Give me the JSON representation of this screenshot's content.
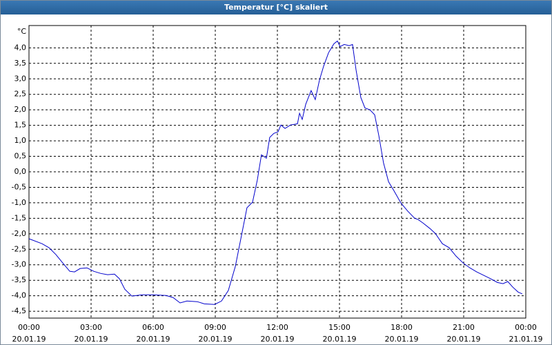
{
  "window_title": "Temperatur [°C] skaliert",
  "chart_data": {
    "type": "line",
    "y_unit": "°C",
    "xlim": [
      0,
      24
    ],
    "xticks": [
      {
        "value": 0,
        "label": "00:00\n20.01.19"
      },
      {
        "value": 3,
        "label": "03:00\n20.01.19"
      },
      {
        "value": 6,
        "label": "06:00\n20.01.19"
      },
      {
        "value": 9,
        "label": "09:00\n20.01.19"
      },
      {
        "value": 12,
        "label": "12:00\n20.01.19"
      },
      {
        "value": 15,
        "label": "15:00\n20.01.19"
      },
      {
        "value": 18,
        "label": "18:00\n20.01.19"
      },
      {
        "value": 21,
        "label": "21:00\n20.01.19"
      },
      {
        "value": 24,
        "label": "00:00\n21.01.19"
      }
    ],
    "ylim": [
      -4.72,
      4.72
    ],
    "yticks": [
      {
        "value": 4,
        "label": "4,0"
      },
      {
        "value": 3.5,
        "label": "3,5"
      },
      {
        "value": 3,
        "label": "3,0"
      },
      {
        "value": 2.5,
        "label": "2,5"
      },
      {
        "value": 2,
        "label": "2,0"
      },
      {
        "value": 1.5,
        "label": "1,5"
      },
      {
        "value": 1,
        "label": "1,0"
      },
      {
        "value": 0.5,
        "label": "0,5"
      },
      {
        "value": 0,
        "label": "0,0"
      },
      {
        "value": -0.5,
        "label": "-0,5"
      },
      {
        "value": -1,
        "label": "-1,0"
      },
      {
        "value": -1.5,
        "label": "-1,5"
      },
      {
        "value": -2,
        "label": "-2,0"
      },
      {
        "value": -2.5,
        "label": "-2,5"
      },
      {
        "value": -3,
        "label": "-3,0"
      },
      {
        "value": -3.5,
        "label": "-3,5"
      },
      {
        "value": -4,
        "label": "-4,0"
      },
      {
        "value": -4.5,
        "label": "-4,5"
      }
    ],
    "grid": true,
    "color": "#0000cc",
    "x": [
      0,
      0.63,
      0.97,
      1.3,
      1.63,
      1.97,
      2.2,
      2.47,
      2.8,
      3.13,
      3.47,
      3.8,
      4.13,
      4.37,
      4.63,
      4.97,
      5.2,
      5.47,
      5.97,
      6.63,
      6.97,
      7.3,
      7.63,
      8.13,
      8.47,
      8.97,
      9.3,
      9.63,
      9.97,
      10.3,
      10.53,
      10.8,
      11.03,
      11.23,
      11.47,
      11.63,
      11.83,
      12.03,
      12.17,
      12.37,
      12.63,
      12.97,
      13.07,
      13.2,
      13.37,
      13.63,
      13.83,
      14.03,
      14.23,
      14.47,
      14.73,
      14.9,
      15.03,
      15.23,
      15.47,
      15.63,
      15.8,
      16.03,
      16.23,
      16.47,
      16.7,
      16.9,
      17.13,
      17.37,
      17.63,
      17.97,
      18.3,
      18.63,
      18.8,
      19.03,
      19.37,
      19.63,
      19.97,
      20.3,
      20.63,
      20.97,
      21.3,
      21.63,
      21.97,
      22.3,
      22.63,
      22.9,
      23.13,
      23.37,
      23.63,
      23.83
    ],
    "values": [
      -2.16,
      -2.32,
      -2.45,
      -2.67,
      -2.94,
      -3.21,
      -3.23,
      -3.12,
      -3.1,
      -3.21,
      -3.28,
      -3.32,
      -3.3,
      -3.45,
      -3.79,
      -4.01,
      -3.99,
      -3.97,
      -3.97,
      -3.99,
      -4.06,
      -4.23,
      -4.17,
      -4.19,
      -4.26,
      -4.28,
      -4.17,
      -3.83,
      -3.05,
      -1.94,
      -1.16,
      -0.98,
      -0.27,
      0.55,
      0.44,
      1.11,
      1.24,
      1.29,
      1.51,
      1.4,
      1.51,
      1.55,
      1.89,
      1.69,
      2.18,
      2.62,
      2.33,
      2.95,
      3.4,
      3.84,
      4.13,
      4.22,
      4.04,
      4.11,
      4.07,
      4.11,
      3.29,
      2.4,
      2.06,
      2.0,
      1.84,
      1.17,
      0.28,
      -0.32,
      -0.61,
      -1.01,
      -1.27,
      -1.5,
      -1.54,
      -1.65,
      -1.83,
      -1.99,
      -2.32,
      -2.45,
      -2.72,
      -2.94,
      -3.1,
      -3.23,
      -3.34,
      -3.45,
      -3.57,
      -3.61,
      -3.54,
      -3.72,
      -3.88,
      -3.94
    ]
  }
}
